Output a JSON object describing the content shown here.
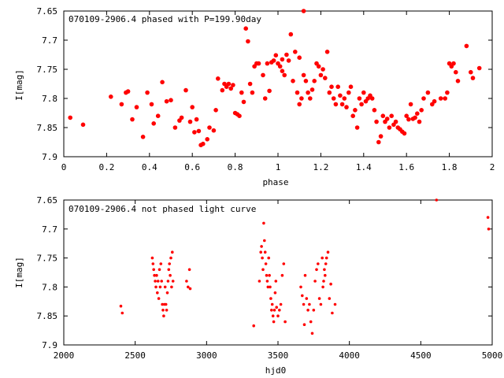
{
  "chart_data": [
    {
      "type": "scatter",
      "title": "070109-2906.4 phased with P=199.90day",
      "xlabel": "phase",
      "ylabel": "I[mag]",
      "xlim": [
        0,
        2
      ],
      "ylim": [
        7.65,
        7.9
      ],
      "y_inverted": true,
      "xticks": [
        "0",
        "0.2",
        "0.4",
        "0.6",
        "0.8",
        "1",
        "1.2",
        "1.4",
        "1.6",
        "1.8",
        "2"
      ],
      "yticks": [
        "7.65",
        "7.7",
        "7.75",
        "7.8",
        "7.85",
        "7.9"
      ],
      "marker_color": "#ff0000",
      "points": [
        [
          0.03,
          7.833
        ],
        [
          0.09,
          7.845
        ],
        [
          0.22,
          7.797
        ],
        [
          0.27,
          7.81
        ],
        [
          0.29,
          7.79
        ],
        [
          0.3,
          7.788
        ],
        [
          0.32,
          7.836
        ],
        [
          0.34,
          7.815
        ],
        [
          0.37,
          7.866
        ],
        [
          0.39,
          7.79
        ],
        [
          0.41,
          7.81
        ],
        [
          0.42,
          7.843
        ],
        [
          0.44,
          7.83
        ],
        [
          0.46,
          7.772
        ],
        [
          0.48,
          7.805
        ],
        [
          0.5,
          7.803
        ],
        [
          0.52,
          7.85
        ],
        [
          0.54,
          7.838
        ],
        [
          0.55,
          7.833
        ],
        [
          0.57,
          7.786
        ],
        [
          0.59,
          7.84
        ],
        [
          0.6,
          7.815
        ],
        [
          0.61,
          7.858
        ],
        [
          0.62,
          7.836
        ],
        [
          0.63,
          7.856
        ],
        [
          0.64,
          7.88
        ],
        [
          0.65,
          7.878
        ],
        [
          0.67,
          7.87
        ],
        [
          0.68,
          7.85
        ],
        [
          0.7,
          7.855
        ],
        [
          0.71,
          7.82
        ],
        [
          0.72,
          7.766
        ],
        [
          0.74,
          7.786
        ],
        [
          0.75,
          7.775
        ],
        [
          0.76,
          7.78
        ],
        [
          0.77,
          7.775
        ],
        [
          0.78,
          7.783
        ],
        [
          0.79,
          7.777
        ],
        [
          0.8,
          7.825
        ],
        [
          0.81,
          7.827
        ],
        [
          0.82,
          7.83
        ],
        [
          0.83,
          7.79
        ],
        [
          0.84,
          7.806
        ],
        [
          0.85,
          7.68
        ],
        [
          0.86,
          7.702
        ],
        [
          0.87,
          7.775
        ],
        [
          0.88,
          7.79
        ],
        [
          0.89,
          7.745
        ],
        [
          0.9,
          7.74
        ],
        [
          0.91,
          7.74
        ],
        [
          0.93,
          7.76
        ],
        [
          0.94,
          7.8
        ],
        [
          0.95,
          7.74
        ],
        [
          0.96,
          7.787
        ],
        [
          0.97,
          7.738
        ],
        [
          0.98,
          7.735
        ],
        [
          0.99,
          7.726
        ],
        [
          1.0,
          7.74
        ],
        [
          1.01,
          7.745
        ],
        [
          1.02,
          7.733
        ],
        [
          1.02,
          7.753
        ],
        [
          1.03,
          7.76
        ],
        [
          1.04,
          7.725
        ],
        [
          1.05,
          7.735
        ],
        [
          1.06,
          7.69
        ],
        [
          1.07,
          7.77
        ],
        [
          1.08,
          7.72
        ],
        [
          1.09,
          7.79
        ],
        [
          1.1,
          7.73
        ],
        [
          1.1,
          7.81
        ],
        [
          1.11,
          7.8
        ],
        [
          1.12,
          7.65
        ],
        [
          1.12,
          7.76
        ],
        [
          1.13,
          7.77
        ],
        [
          1.14,
          7.79
        ],
        [
          1.15,
          7.8
        ],
        [
          1.16,
          7.785
        ],
        [
          1.17,
          7.77
        ],
        [
          1.18,
          7.74
        ],
        [
          1.19,
          7.745
        ],
        [
          1.2,
          7.76
        ],
        [
          1.21,
          7.75
        ],
        [
          1.22,
          7.765
        ],
        [
          1.23,
          7.72
        ],
        [
          1.24,
          7.79
        ],
        [
          1.25,
          7.78
        ],
        [
          1.26,
          7.8
        ],
        [
          1.27,
          7.81
        ],
        [
          1.28,
          7.78
        ],
        [
          1.29,
          7.795
        ],
        [
          1.3,
          7.81
        ],
        [
          1.31,
          7.8
        ],
        [
          1.32,
          7.815
        ],
        [
          1.33,
          7.79
        ],
        [
          1.34,
          7.78
        ],
        [
          1.35,
          7.83
        ],
        [
          1.36,
          7.82
        ],
        [
          1.37,
          7.85
        ],
        [
          1.38,
          7.8
        ],
        [
          1.39,
          7.81
        ],
        [
          1.4,
          7.79
        ],
        [
          1.41,
          7.805
        ],
        [
          1.42,
          7.8
        ],
        [
          1.43,
          7.795
        ],
        [
          1.44,
          7.8
        ],
        [
          1.45,
          7.82
        ],
        [
          1.46,
          7.84
        ],
        [
          1.47,
          7.875
        ],
        [
          1.48,
          7.865
        ],
        [
          1.49,
          7.83
        ],
        [
          1.5,
          7.84
        ],
        [
          1.51,
          7.835
        ],
        [
          1.52,
          7.85
        ],
        [
          1.53,
          7.83
        ],
        [
          1.54,
          7.845
        ],
        [
          1.55,
          7.84
        ],
        [
          1.56,
          7.85
        ],
        [
          1.57,
          7.853
        ],
        [
          1.58,
          7.857
        ],
        [
          1.59,
          7.86
        ],
        [
          1.6,
          7.83
        ],
        [
          1.61,
          7.836
        ],
        [
          1.62,
          7.81
        ],
        [
          1.63,
          7.835
        ],
        [
          1.64,
          7.833
        ],
        [
          1.65,
          7.826
        ],
        [
          1.66,
          7.84
        ],
        [
          1.67,
          7.82
        ],
        [
          1.68,
          7.8
        ],
        [
          1.7,
          7.79
        ],
        [
          1.72,
          7.81
        ],
        [
          1.73,
          7.805
        ],
        [
          1.76,
          7.8
        ],
        [
          1.78,
          7.8
        ],
        [
          1.79,
          7.79
        ],
        [
          1.8,
          7.74
        ],
        [
          1.81,
          7.745
        ],
        [
          1.82,
          7.74
        ],
        [
          1.83,
          7.755
        ],
        [
          1.84,
          7.77
        ],
        [
          1.88,
          7.71
        ],
        [
          1.9,
          7.755
        ],
        [
          1.91,
          7.765
        ],
        [
          1.94,
          7.748
        ]
      ]
    },
    {
      "type": "scatter",
      "title": "070109-2906.4 not phased light curve",
      "xlabel": "hjd0",
      "ylabel": "I[mag]",
      "xlim": [
        2000,
        5000
      ],
      "ylim": [
        7.65,
        7.9
      ],
      "y_inverted": true,
      "xticks": [
        "2000",
        "2500",
        "3000",
        "3500",
        "4000",
        "4500",
        "5000"
      ],
      "yticks": [
        "7.65",
        "7.7",
        "7.75",
        "7.8",
        "7.85",
        "7.9"
      ],
      "marker_color": "#ff0000",
      "points": [
        [
          2400,
          7.833
        ],
        [
          2410,
          7.845
        ],
        [
          2620,
          7.75
        ],
        [
          2625,
          7.76
        ],
        [
          2630,
          7.77
        ],
        [
          2635,
          7.78
        ],
        [
          2640,
          7.79
        ],
        [
          2645,
          7.8
        ],
        [
          2650,
          7.78
        ],
        [
          2655,
          7.81
        ],
        [
          2660,
          7.79
        ],
        [
          2665,
          7.82
        ],
        [
          2670,
          7.77
        ],
        [
          2675,
          7.8
        ],
        [
          2680,
          7.76
        ],
        [
          2685,
          7.79
        ],
        [
          2690,
          7.83
        ],
        [
          2695,
          7.84
        ],
        [
          2700,
          7.85
        ],
        [
          2705,
          7.83
        ],
        [
          2710,
          7.8
        ],
        [
          2715,
          7.83
        ],
        [
          2720,
          7.84
        ],
        [
          2725,
          7.81
        ],
        [
          2730,
          7.79
        ],
        [
          2735,
          7.77
        ],
        [
          2740,
          7.76
        ],
        [
          2745,
          7.78
        ],
        [
          2750,
          7.75
        ],
        [
          2755,
          7.8
        ],
        [
          2760,
          7.74
        ],
        [
          2765,
          7.79
        ],
        [
          2860,
          7.79
        ],
        [
          2870,
          7.8
        ],
        [
          2880,
          7.77
        ],
        [
          2885,
          7.803
        ],
        [
          3330,
          7.867
        ],
        [
          3370,
          7.79
        ],
        [
          3380,
          7.74
        ],
        [
          3385,
          7.73
        ],
        [
          3390,
          7.75
        ],
        [
          3395,
          7.77
        ],
        [
          3400,
          7.69
        ],
        [
          3405,
          7.72
        ],
        [
          3410,
          7.74
        ],
        [
          3415,
          7.76
        ],
        [
          3420,
          7.78
        ],
        [
          3425,
          7.79
        ],
        [
          3430,
          7.8
        ],
        [
          3435,
          7.75
        ],
        [
          3440,
          7.78
        ],
        [
          3445,
          7.8
        ],
        [
          3450,
          7.82
        ],
        [
          3455,
          7.84
        ],
        [
          3460,
          7.83
        ],
        [
          3465,
          7.85
        ],
        [
          3470,
          7.86
        ],
        [
          3475,
          7.84
        ],
        [
          3480,
          7.81
        ],
        [
          3485,
          7.79
        ],
        [
          3490,
          7.835
        ],
        [
          3500,
          7.85
        ],
        [
          3510,
          7.84
        ],
        [
          3520,
          7.83
        ],
        [
          3530,
          7.78
        ],
        [
          3540,
          7.76
        ],
        [
          3550,
          7.86
        ],
        [
          3660,
          7.8
        ],
        [
          3670,
          7.815
        ],
        [
          3680,
          7.83
        ],
        [
          3685,
          7.865
        ],
        [
          3690,
          7.78
        ],
        [
          3700,
          7.82
        ],
        [
          3710,
          7.84
        ],
        [
          3720,
          7.83
        ],
        [
          3730,
          7.86
        ],
        [
          3740,
          7.88
        ],
        [
          3750,
          7.84
        ],
        [
          3760,
          7.79
        ],
        [
          3770,
          7.77
        ],
        [
          3780,
          7.76
        ],
        [
          3790,
          7.82
        ],
        [
          3800,
          7.83
        ],
        [
          3810,
          7.75
        ],
        [
          3815,
          7.8
        ],
        [
          3820,
          7.79
        ],
        [
          3825,
          7.77
        ],
        [
          3830,
          7.78
        ],
        [
          3835,
          7.76
        ],
        [
          3840,
          7.75
        ],
        [
          3850,
          7.74
        ],
        [
          3860,
          7.82
        ],
        [
          3870,
          7.795
        ],
        [
          3880,
          7.845
        ],
        [
          3900,
          7.83
        ],
        [
          4610,
          7.65
        ],
        [
          4970,
          7.68
        ],
        [
          4975,
          7.7
        ]
      ]
    }
  ]
}
